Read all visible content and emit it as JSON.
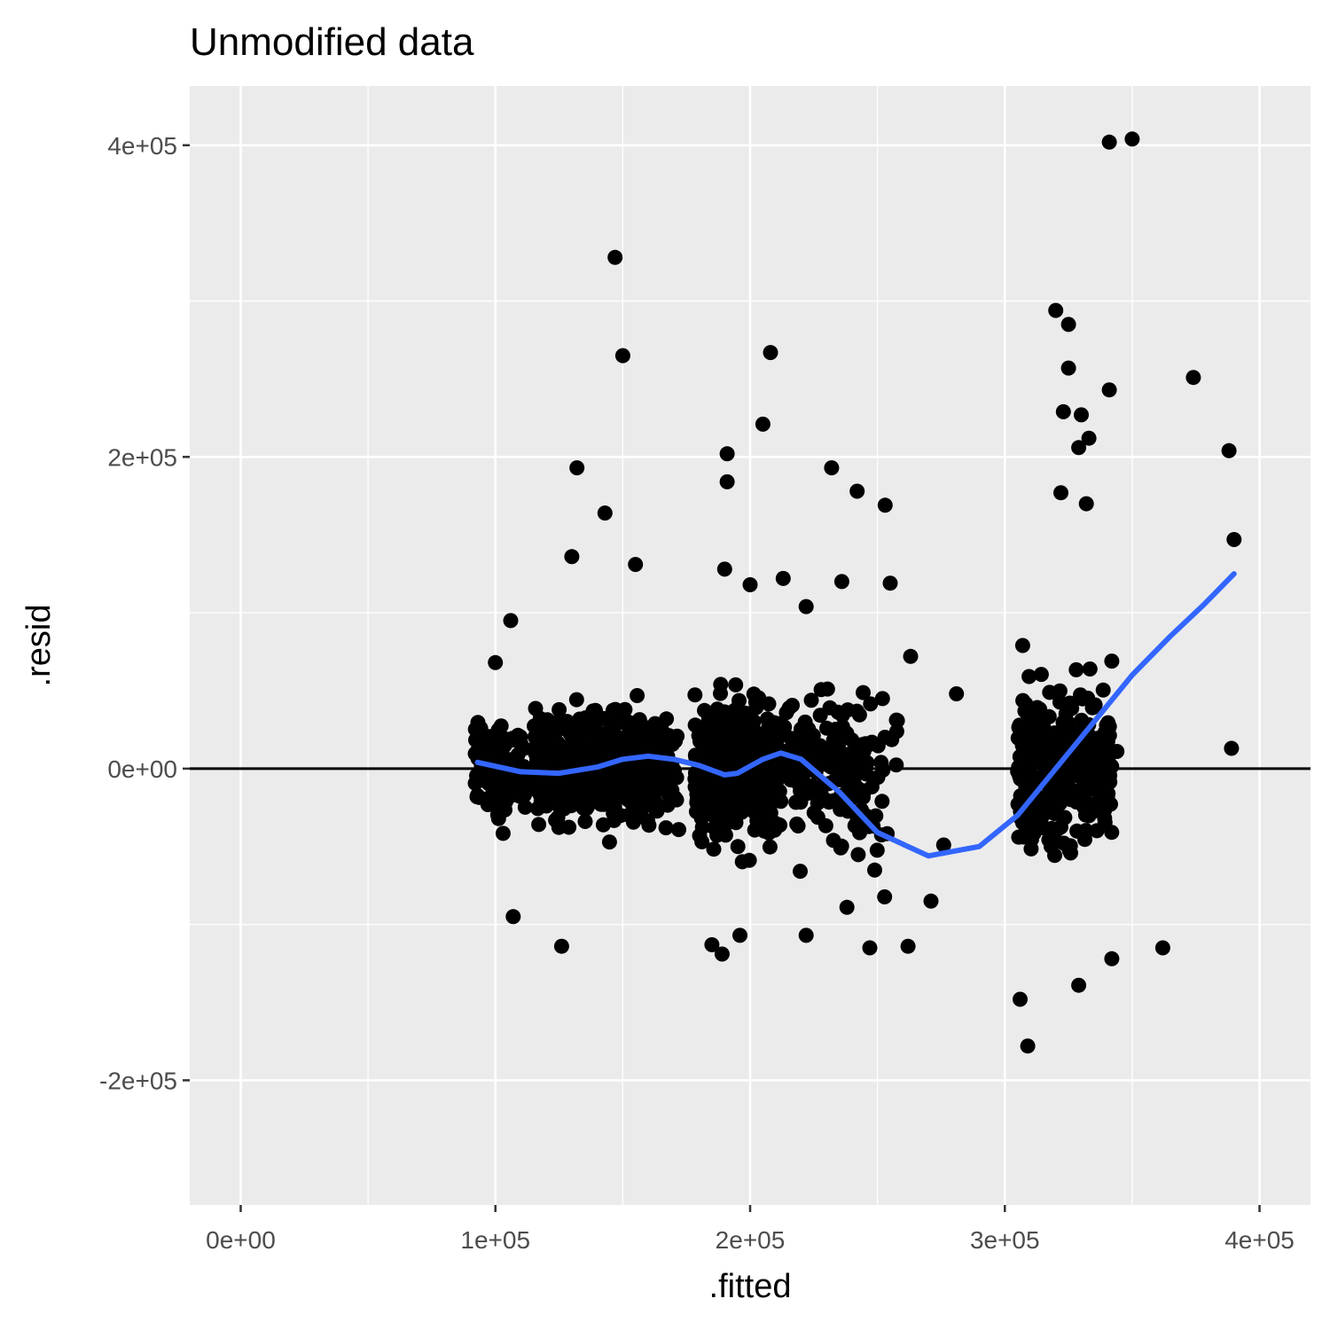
{
  "chart_data": {
    "type": "scatter",
    "title": "Unmodified data",
    "xlabel": ".fitted",
    "ylabel": ".resid",
    "xlim": [
      -20000,
      420000
    ],
    "ylim": [
      -280000,
      438000
    ],
    "x_ticks": [
      {
        "value": 0,
        "label": "0e+00"
      },
      {
        "value": 100000,
        "label": "1e+05"
      },
      {
        "value": 200000,
        "label": "2e+05"
      },
      {
        "value": 300000,
        "label": "3e+05"
      },
      {
        "value": 400000,
        "label": "4e+05"
      }
    ],
    "y_ticks": [
      {
        "value": -200000,
        "label": "-2e+05"
      },
      {
        "value": 0,
        "label": "0e+00"
      },
      {
        "value": 200000,
        "label": "2e+05"
      },
      {
        "value": 400000,
        "label": "4e+05"
      }
    ],
    "grid": true,
    "reference_line": {
      "y": 0,
      "color": "#000000"
    },
    "points_color": "#000000",
    "panel_background": "#ebebeb",
    "points": [
      {
        "x": 147000,
        "y": 328000
      },
      {
        "x": 150000,
        "y": 265000
      },
      {
        "x": 132000,
        "y": 193000
      },
      {
        "x": 143000,
        "y": 164000
      },
      {
        "x": 208000,
        "y": 267000
      },
      {
        "x": 205000,
        "y": 221000
      },
      {
        "x": 191000,
        "y": 202000
      },
      {
        "x": 191000,
        "y": 184000
      },
      {
        "x": 232000,
        "y": 193000
      },
      {
        "x": 242000,
        "y": 178000
      },
      {
        "x": 253000,
        "y": 169000
      },
      {
        "x": 341000,
        "y": 402000
      },
      {
        "x": 350000,
        "y": 404000
      },
      {
        "x": 320000,
        "y": 294000
      },
      {
        "x": 325000,
        "y": 285000
      },
      {
        "x": 325000,
        "y": 257000
      },
      {
        "x": 341000,
        "y": 243000
      },
      {
        "x": 374000,
        "y": 251000
      },
      {
        "x": 388000,
        "y": 204000
      },
      {
        "x": 390000,
        "y": 147000
      },
      {
        "x": 323000,
        "y": 229000
      },
      {
        "x": 330000,
        "y": 227000
      },
      {
        "x": 333000,
        "y": 212000
      },
      {
        "x": 329000,
        "y": 206000
      },
      {
        "x": 322000,
        "y": 177000
      },
      {
        "x": 332000,
        "y": 170000
      },
      {
        "x": 389000,
        "y": 13000
      },
      {
        "x": 344000,
        "y": 11000
      },
      {
        "x": 281000,
        "y": 48000
      },
      {
        "x": 263000,
        "y": 72000
      },
      {
        "x": 276000,
        "y": -49000
      },
      {
        "x": 271000,
        "y": -85000
      },
      {
        "x": 262000,
        "y": -114000
      },
      {
        "x": 247000,
        "y": -115000
      },
      {
        "x": 362000,
        "y": -115000
      },
      {
        "x": 342000,
        "y": -122000
      },
      {
        "x": 309000,
        "y": -178000
      },
      {
        "x": 329000,
        "y": -139000
      },
      {
        "x": 306000,
        "y": -148000
      },
      {
        "x": 107000,
        "y": -95000
      },
      {
        "x": 126000,
        "y": -114000
      },
      {
        "x": 106000,
        "y": 95000
      },
      {
        "x": 100000,
        "y": 68000
      },
      {
        "x": 130000,
        "y": 136000
      },
      {
        "x": 155000,
        "y": 131000
      },
      {
        "x": 190000,
        "y": 128000
      },
      {
        "x": 200000,
        "y": 118000
      },
      {
        "x": 213000,
        "y": 122000
      },
      {
        "x": 222000,
        "y": 104000
      },
      {
        "x": 236000,
        "y": 120000
      },
      {
        "x": 255000,
        "y": 119000
      },
      {
        "x": 307000,
        "y": 79000
      },
      {
        "x": 342000,
        "y": 69000
      },
      {
        "x": 185000,
        "y": -113000
      },
      {
        "x": 196000,
        "y": -107000
      },
      {
        "x": 222000,
        "y": -107000
      },
      {
        "x": 189000,
        "y": -119000
      },
      {
        "x": 238000,
        "y": -89000
      }
    ],
    "smooth": {
      "color": "#3366ff",
      "x": [
        93000,
        110000,
        125000,
        140000,
        150000,
        160000,
        170000,
        180000,
        190000,
        195000,
        205000,
        212000,
        220000,
        235000,
        250000,
        270000,
        290000,
        305000,
        320000,
        335000,
        350000,
        365000,
        378000,
        390000
      ],
      "y": [
        4000,
        -2000,
        -3000,
        1000,
        6000,
        8000,
        6000,
        2000,
        -4000,
        -3000,
        6000,
        10000,
        6000,
        -15000,
        -41000,
        -56000,
        -50000,
        -30000,
        0,
        30000,
        60000,
        85000,
        105000,
        125000
      ]
    }
  }
}
